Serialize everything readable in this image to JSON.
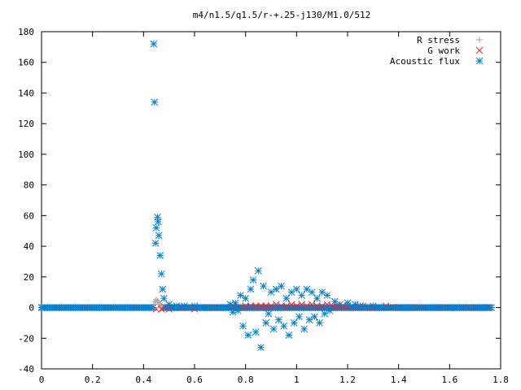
{
  "chart_data": {
    "type": "scatter",
    "title": "m4/n1.5/q1.5/r-+.25-j130/M1.0/512",
    "xlabel": "",
    "ylabel": "",
    "xlim": [
      0,
      1.8
    ],
    "ylim": [
      -40,
      180
    ],
    "x_ticks": [
      "0",
      "0.2",
      "0.4",
      "0.6",
      "0.8",
      "1",
      "1.2",
      "1.4",
      "1.6",
      "1.8"
    ],
    "y_ticks": [
      "-40",
      "-20",
      "0",
      "20",
      "40",
      "60",
      "80",
      "100",
      "120",
      "140",
      "160",
      "180"
    ],
    "x_tick_values": [
      0,
      0.2,
      0.4,
      0.6,
      0.8,
      1.0,
      1.2,
      1.4,
      1.6,
      1.8
    ],
    "y_tick_values": [
      -40,
      -20,
      0,
      20,
      40,
      60,
      80,
      100,
      120,
      140,
      160,
      180
    ],
    "legend_position": "top-right",
    "grid": false,
    "series": [
      {
        "name": "R stress",
        "marker": "plus",
        "color": "#a0a0a4",
        "x": [
          0.44,
          0.445,
          0.45,
          0.455,
          0.46,
          0.465,
          0.47
        ],
        "y": [
          2,
          4,
          5,
          4,
          3,
          2,
          1
        ]
      },
      {
        "name": "G work",
        "marker": "cross",
        "color": "#ff2020",
        "x": [
          0.45,
          0.47,
          0.5,
          0.55,
          0.6,
          0.65,
          0.7,
          0.75,
          0.78,
          0.8,
          0.82,
          0.84,
          0.86,
          0.88,
          0.9,
          0.92,
          0.94,
          0.96,
          0.98,
          1.0,
          1.02,
          1.04,
          1.06,
          1.08,
          1.1,
          1.12,
          1.14,
          1.16,
          1.18,
          1.2,
          1.22,
          1.25,
          1.3,
          1.35,
          1.4,
          1.45,
          1.5,
          1.55,
          1.6,
          1.65,
          1.7,
          1.75
        ],
        "y": [
          -1,
          -1,
          -1,
          0,
          -1,
          0,
          0,
          1,
          0,
          1,
          1,
          1,
          1,
          1,
          1,
          2,
          1,
          1,
          2,
          1,
          2,
          1,
          2,
          1,
          1,
          2,
          1,
          1,
          1,
          1,
          0,
          1,
          0,
          1,
          0,
          0,
          0,
          0,
          0,
          0,
          0,
          0
        ]
      },
      {
        "name": "Acoustic flux",
        "marker": "star",
        "color": "#0080d0",
        "x": [
          0.0,
          0.03,
          0.06,
          0.09,
          0.12,
          0.15,
          0.18,
          0.21,
          0.24,
          0.27,
          0.3,
          0.33,
          0.36,
          0.39,
          0.42,
          0.44,
          0.443,
          0.447,
          0.45,
          0.455,
          0.457,
          0.46,
          0.465,
          0.47,
          0.475,
          0.48,
          0.5,
          0.53,
          0.56,
          0.6,
          0.65,
          0.7,
          0.74,
          0.75,
          0.76,
          0.77,
          0.78,
          0.79,
          0.8,
          0.81,
          0.82,
          0.83,
          0.84,
          0.85,
          0.86,
          0.87,
          0.88,
          0.89,
          0.9,
          0.91,
          0.92,
          0.93,
          0.94,
          0.95,
          0.96,
          0.97,
          0.98,
          0.99,
          1.0,
          1.01,
          1.02,
          1.03,
          1.04,
          1.05,
          1.06,
          1.07,
          1.08,
          1.09,
          1.1,
          1.11,
          1.12,
          1.13,
          1.15,
          1.17,
          1.2,
          1.23,
          1.26,
          1.3,
          1.35,
          1.4,
          1.45,
          1.5,
          1.55,
          1.6,
          1.65,
          1.7,
          1.75
        ],
        "y": [
          0,
          0,
          0,
          0,
          0,
          0,
          0,
          0,
          0,
          0,
          0,
          0,
          0,
          0,
          0,
          172,
          134,
          42,
          52,
          59,
          56,
          47,
          34,
          22,
          12,
          6,
          2,
          1,
          1,
          1,
          0,
          0,
          2,
          -3,
          3,
          -2,
          8,
          -12,
          6,
          -18,
          12,
          18,
          -16,
          24,
          -26,
          14,
          -10,
          -4,
          10,
          -14,
          12,
          -8,
          14,
          -12,
          6,
          -18,
          10,
          -10,
          12,
          -6,
          8,
          -14,
          12,
          -8,
          10,
          -6,
          6,
          -10,
          10,
          -4,
          8,
          -2,
          4,
          2,
          3,
          2,
          1,
          1,
          0,
          0,
          0,
          0,
          0,
          0,
          0,
          0,
          0
        ]
      }
    ]
  }
}
